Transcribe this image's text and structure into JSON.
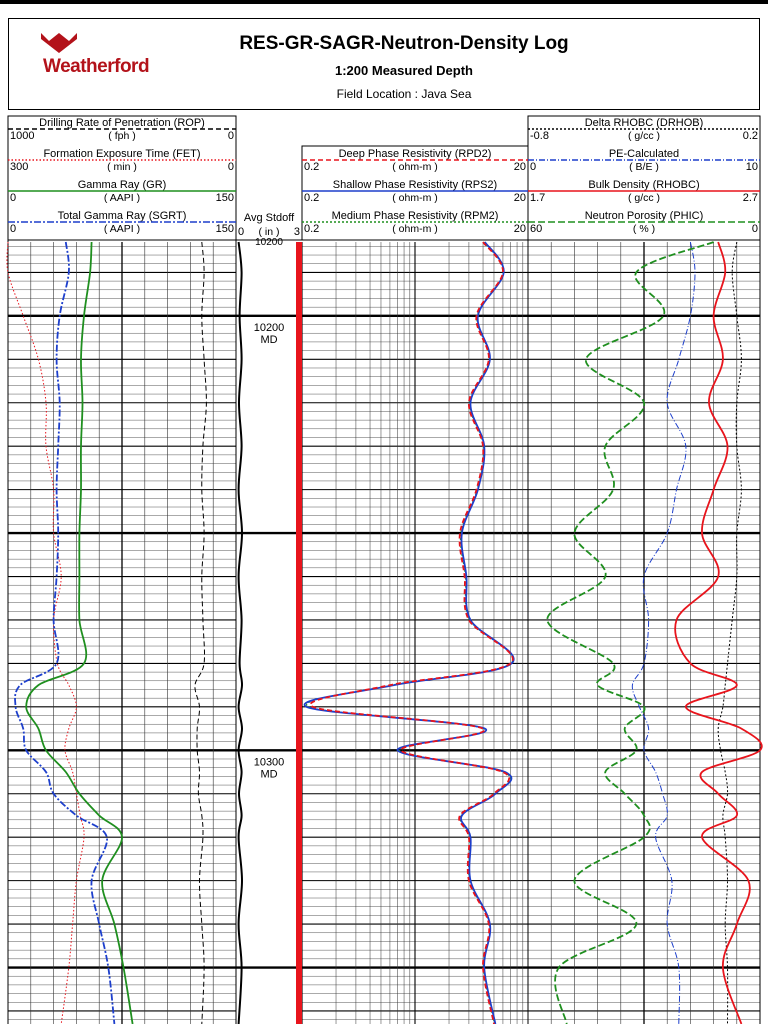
{
  "header": {
    "brand": "Weatherford",
    "title": "RES-GR-SAGR-Neutron-Density Log",
    "subtitle": "1:200 Measured Depth",
    "location": "Field Location : Java Sea"
  },
  "colors": {
    "red": "#e8141c",
    "green": "#1f8f1f",
    "blue": "#1d3fcc",
    "black": "#000000",
    "brand": "#b3121a"
  },
  "chart_data": {
    "type": "line",
    "y_axis": {
      "quantity": "measured depth",
      "units": "MD",
      "reversed": true,
      "range": [
        10183,
        10363
      ],
      "labels": [
        {
          "value": 10200,
          "text": "10200",
          "unit": "MD"
        },
        {
          "value": 10300,
          "text": "10300",
          "unit": "MD"
        }
      ]
    },
    "stdoff_top_label": "10200",
    "tracks": [
      {
        "id": "track1",
        "curves": [
          {
            "name": "Drilling Rate of Penetration (ROP)",
            "unit": "( fph )",
            "min": "1000",
            "max": "0",
            "color": "#000000",
            "dash": "5,3"
          },
          {
            "name": "Formation Exposure Time (FET)",
            "unit": "( min )",
            "min": "300",
            "max": "0",
            "color": "#e8141c",
            "dash": "1.5,2"
          },
          {
            "name": "Gamma Ray (GR)",
            "unit": "( AAPI )",
            "min": "0",
            "max": "150",
            "color": "#1f8f1f",
            "dash": ""
          },
          {
            "name": "Total Gamma Ray (SGRT)",
            "unit": "( AAPI )",
            "min": "0",
            "max": "150",
            "color": "#1d3fcc",
            "dash": "7,2,2,2"
          }
        ]
      },
      {
        "id": "depth-track",
        "curves": [
          {
            "name": "Avg Stdoff",
            "unit": "( in )",
            "min": "0",
            "max": "3",
            "color": "#000000",
            "dash": ""
          }
        ]
      },
      {
        "id": "track2",
        "curves": [
          {
            "name": "Deep Phase Resistivity (RPD2)",
            "unit": "( ohm-m )",
            "min": "0.2",
            "max": "20",
            "color": "#e8141c",
            "dash": "5,3"
          },
          {
            "name": "Shallow Phase Resistivity (RPS2)",
            "unit": "( ohm-m )",
            "min": "0.2",
            "max": "20",
            "color": "#1d3fcc",
            "dash": ""
          },
          {
            "name": "Medium Phase Resistivity (RPM2)",
            "unit": "( ohm-m )",
            "min": "0.2",
            "max": "20",
            "color": "#1f8f1f",
            "dash": "2,2"
          }
        ]
      },
      {
        "id": "track3",
        "curves": [
          {
            "name": "Delta RHOBC (DRHOB)",
            "unit": "( g/cc )",
            "min": "-0.8",
            "max": "0.2",
            "color": "#000000",
            "dash": "2,2"
          },
          {
            "name": "PE-Calculated",
            "unit": "( B/E )",
            "min": "0",
            "max": "10",
            "color": "#1d3fcc",
            "dash": "6,2,1,2"
          },
          {
            "name": "Bulk Density (RHOBC)",
            "unit": "( g/cc )",
            "min": "1.7",
            "max": "2.7",
            "color": "#e8141c",
            "dash": ""
          },
          {
            "name": "Neutron Porosity (PHIC)",
            "unit": "( % )",
            "min": "60",
            "max": "0",
            "color": "#1f8f1f",
            "dash": "7,3"
          }
        ]
      }
    ],
    "series": {
      "depth": [
        10183,
        10190,
        10200,
        10210,
        10220,
        10230,
        10240,
        10250,
        10260,
        10270,
        10280,
        10285,
        10290,
        10295,
        10300,
        10305,
        10310,
        10315,
        10320,
        10330,
        10340,
        10350,
        10363
      ],
      "GR": [
        55,
        54,
        50,
        48,
        49,
        48,
        48,
        47,
        47,
        47,
        50,
        20,
        12,
        20,
        25,
        38,
        47,
        60,
        75,
        62,
        70,
        76,
        82
      ],
      "SGRT": [
        38,
        40,
        34,
        32,
        34,
        33,
        32,
        33,
        32,
        30,
        32,
        8,
        5,
        10,
        12,
        25,
        30,
        45,
        65,
        55,
        60,
        66,
        70
      ],
      "ROP": [
        150,
        140,
        150,
        140,
        130,
        145,
        150,
        140,
        150,
        145,
        140,
        180,
        160,
        170,
        170,
        160,
        165,
        150,
        145,
        160,
        150,
        140,
        150
      ],
      "FET": [
        300,
        300,
        280,
        260,
        250,
        250,
        240,
        240,
        230,
        240,
        235,
        220,
        210,
        220,
        225,
        215,
        210,
        205,
        200,
        210,
        215,
        220,
        230
      ],
      "RPD2": [
        8.0,
        12.0,
        7.0,
        9.0,
        6.0,
        8.0,
        7.0,
        5.0,
        5.5,
        6.0,
        14.0,
        1.2,
        0.25,
        8.0,
        1.5,
        12.0,
        10.0,
        5.0,
        6.0,
        6.0,
        9.0,
        8.0,
        10.0
      ],
      "RPS2": [
        8.3,
        12.2,
        7.2,
        9.2,
        6.2,
        8.2,
        7.2,
        5.2,
        5.7,
        6.2,
        14.3,
        1.3,
        0.22,
        8.3,
        1.4,
        12.5,
        10.3,
        5.2,
        6.2,
        6.2,
        9.2,
        8.2,
        10.3
      ],
      "RPM2": [
        8.1,
        12.1,
        7.1,
        9.1,
        6.1,
        8.1,
        7.1,
        5.1,
        5.6,
        6.1,
        14.1,
        1.25,
        0.23,
        8.1,
        1.45,
        12.2,
        10.1,
        5.1,
        6.1,
        6.1,
        9.1,
        8.1,
        10.1
      ],
      "PHIC": [
        12,
        32,
        25,
        45,
        30,
        40,
        38,
        48,
        40,
        55,
        38,
        42,
        30,
        35,
        32,
        40,
        35,
        30,
        30,
        48,
        32,
        52,
        50
      ],
      "RHOBC": [
        2.52,
        2.55,
        2.5,
        2.54,
        2.48,
        2.56,
        2.5,
        2.45,
        2.52,
        2.34,
        2.4,
        2.6,
        2.38,
        2.62,
        2.7,
        2.45,
        2.52,
        2.6,
        2.45,
        2.65,
        2.6,
        2.54,
        2.62
      ],
      "PE": [
        7.0,
        7.2,
        7.0,
        6.5,
        6.0,
        6.8,
        6.4,
        6.0,
        5.0,
        5.2,
        5.0,
        4.5,
        4.8,
        5.2,
        5.0,
        5.5,
        5.8,
        6.0,
        5.5,
        6.2,
        6.0,
        6.5,
        6.5
      ],
      "DRHOB": [
        0.1,
        0.08,
        0.1,
        0.12,
        0.1,
        0.1,
        0.12,
        0.1,
        0.1,
        0.08,
        0.06,
        0.05,
        0.04,
        0.02,
        0.03,
        0.05,
        0.06,
        0.04,
        0.05,
        0.06,
        0.05,
        0.06,
        0.06
      ],
      "STDOFF": [
        0.1,
        0.1,
        0.15,
        0.1,
        0.12,
        0.1,
        0.1,
        0.12,
        0.1,
        0.1,
        0.15,
        0.12,
        0.1,
        0.12,
        0.1,
        0.1,
        0.12,
        0.1,
        0.1,
        0.12,
        0.1,
        0.1,
        0.1
      ]
    }
  }
}
